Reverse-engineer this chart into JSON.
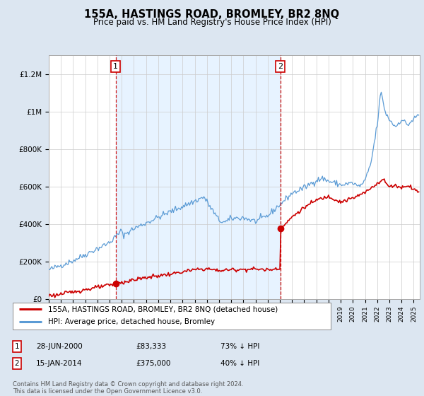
{
  "title": "155A, HASTINGS ROAD, BROMLEY, BR2 8NQ",
  "subtitle": "Price paid vs. HM Land Registry's House Price Index (HPI)",
  "legend_line1": "155A, HASTINGS ROAD, BROMLEY, BR2 8NQ (detached house)",
  "legend_line2": "HPI: Average price, detached house, Bromley",
  "marker1_date": "28-JUN-2000",
  "marker1_price": "£83,333",
  "marker1_hpi": "73% ↓ HPI",
  "marker1_year": 2000.5,
  "marker1_value": 83333,
  "marker2_date": "15-JAN-2014",
  "marker2_price": "£375,000",
  "marker2_hpi": "40% ↓ HPI",
  "marker2_year": 2014.04,
  "marker2_value": 375000,
  "red_line_color": "#cc0000",
  "blue_line_color": "#5b9bd5",
  "shade_color": "#ddeeff",
  "background_color": "#dce6f1",
  "plot_bg_color": "#ffffff",
  "grid_color": "#cccccc",
  "annotation_box_color": "#cc0000",
  "dashed_line_color": "#cc0000",
  "ylim": [
    0,
    1300000
  ],
  "xlim": [
    1995.0,
    2025.5
  ],
  "footer": "Contains HM Land Registry data © Crown copyright and database right 2024.\nThis data is licensed under the Open Government Licence v3.0."
}
